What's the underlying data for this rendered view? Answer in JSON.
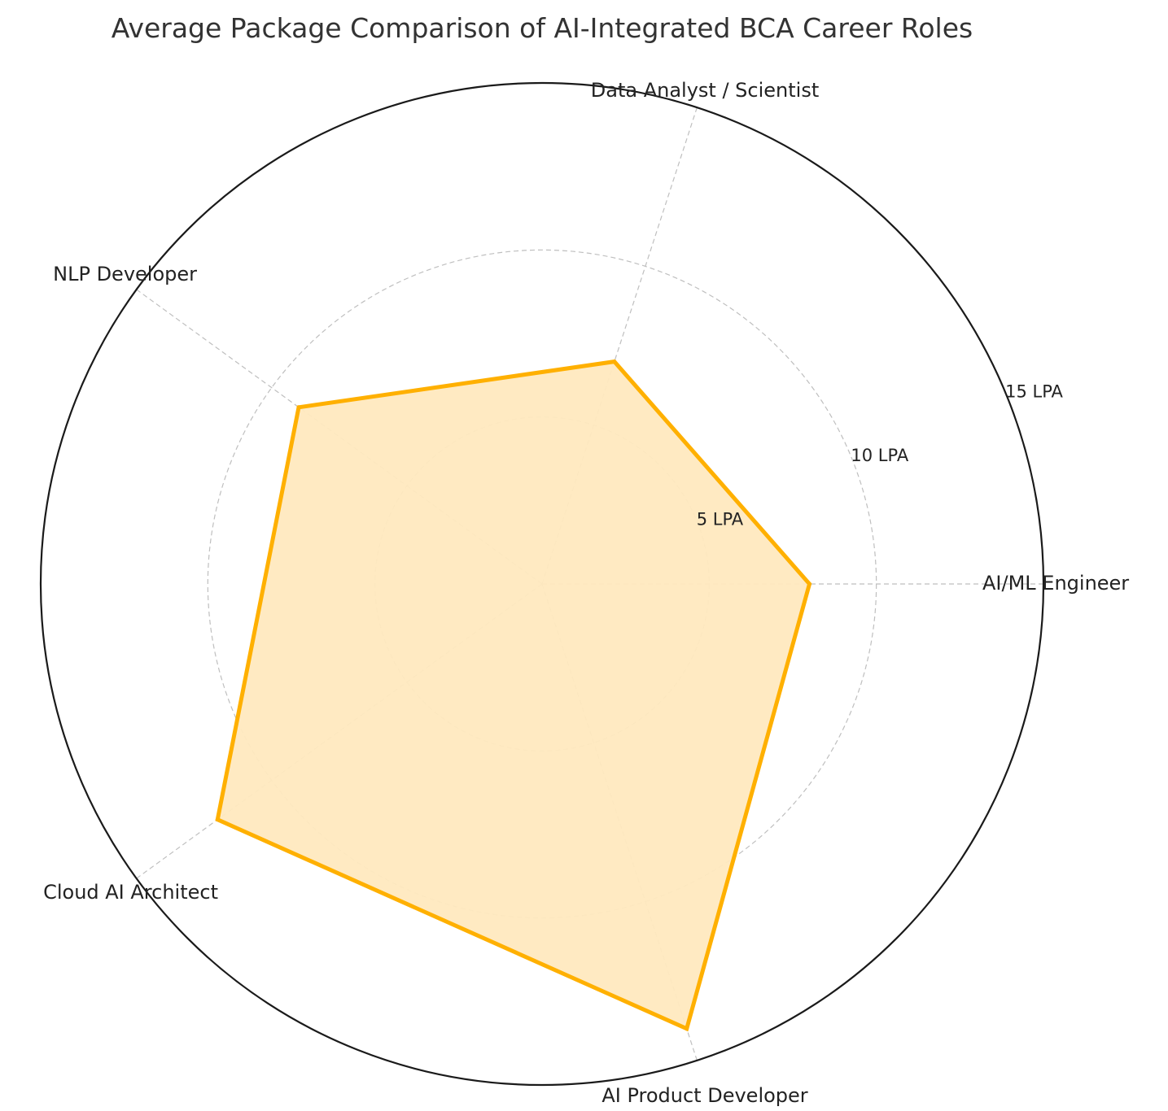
{
  "chart_data": {
    "type": "radar",
    "title": "Average Package Comparison of AI-Integrated BCA Career Roles",
    "categories": [
      "AI/ML Engineer",
      "Data Analyst / Scientist",
      "NLP Developer",
      "Cloud AI Architect",
      "AI Product Developer"
    ],
    "series": [
      {
        "values": [
          8,
          7,
          9,
          12,
          14
        ]
      }
    ],
    "r_ticks": [
      5,
      10,
      15
    ],
    "r_tick_labels": [
      "5 LPA",
      "10 LPA",
      "15 LPA"
    ],
    "rlim": [
      0,
      15
    ],
    "grid": true,
    "legend": "none",
    "colors": {
      "line": "#FFB000",
      "fill": "#FFE9BF",
      "grid": "#BFBFBF",
      "outline": "#1A1A1A"
    }
  }
}
